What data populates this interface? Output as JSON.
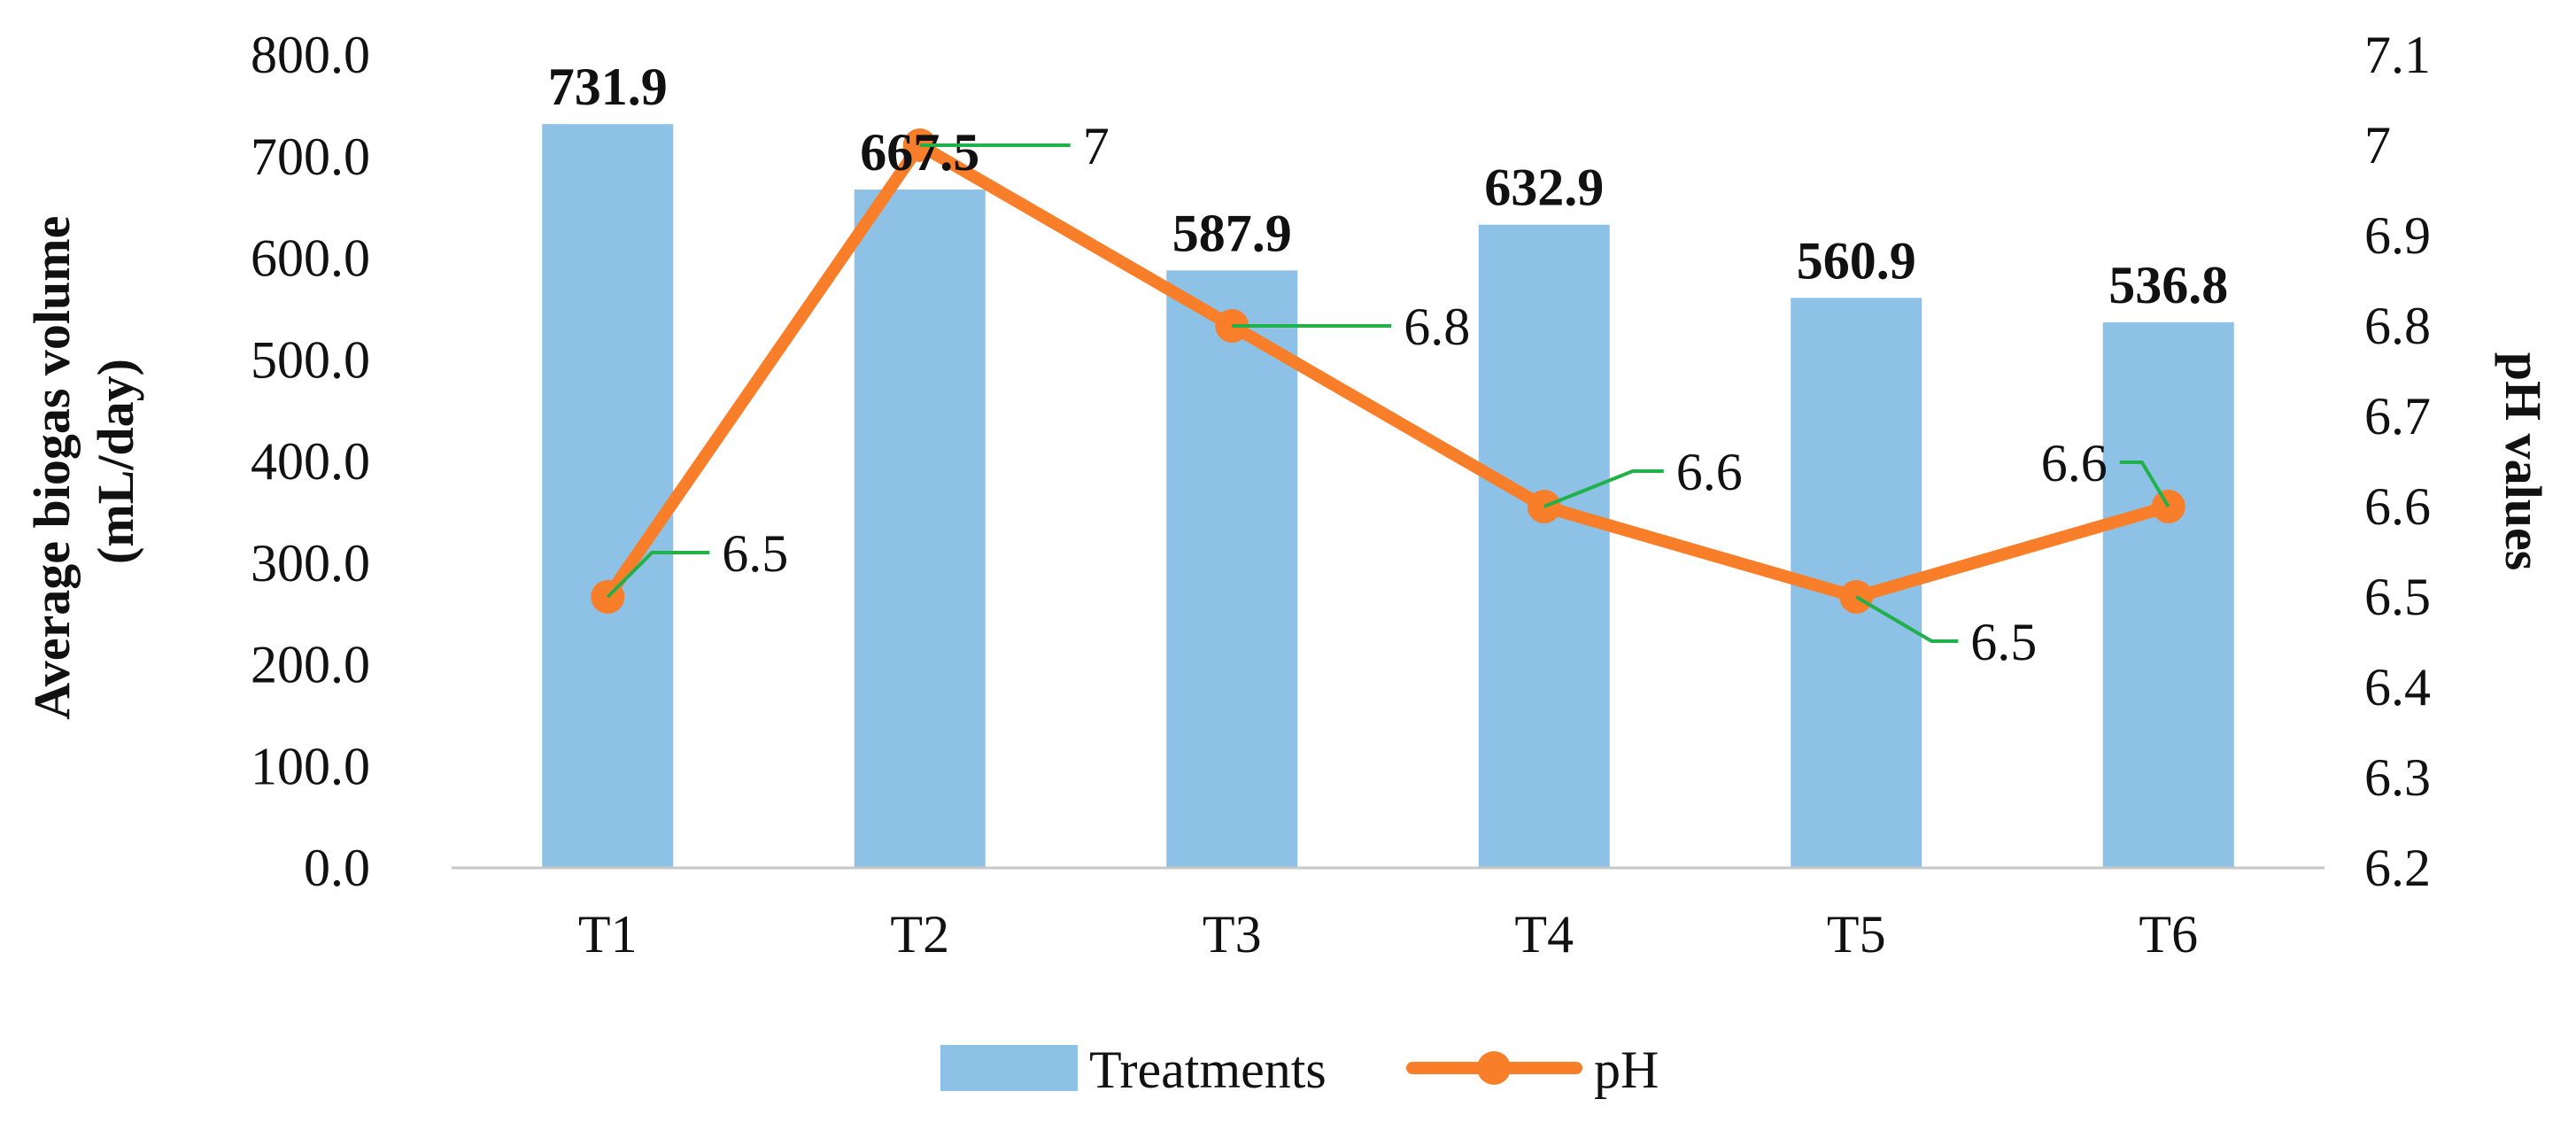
{
  "chart_data": {
    "type": "bar",
    "categories": [
      "T1",
      "T2",
      "T3",
      "T4",
      "T5",
      "T6"
    ],
    "series": [
      {
        "name": "Treatments",
        "type": "bar",
        "axis": "left",
        "values": [
          731.9,
          667.5,
          587.9,
          632.9,
          560.9,
          536.8
        ],
        "labels": [
          "731.9",
          "667.5",
          "587.9",
          "632.9",
          "560.9",
          "536.8"
        ],
        "color": "#8DC1E6"
      },
      {
        "name": "pH",
        "type": "line",
        "axis": "right",
        "values": [
          6.5,
          7.0,
          6.8,
          6.6,
          6.5,
          6.6
        ],
        "labels": [
          "6.5",
          "7",
          "6.8",
          "6.6",
          "6.5",
          "6.6"
        ],
        "color": "#F97E2A",
        "label_leader_color": "#22B04A"
      }
    ],
    "ylabel": "Average biogas volume (mL/day)",
    "ylabel_lines": [
      "Average biogas volume",
      "(mL/day)"
    ],
    "y2label": "pH values",
    "ylim": [
      0,
      800
    ],
    "y2lim": [
      6.2,
      7.1
    ],
    "yticks": [
      "0.0",
      "100.0",
      "200.0",
      "300.0",
      "400.0",
      "500.0",
      "600.0",
      "700.0",
      "800.0"
    ],
    "y2ticks": [
      "6.2",
      "6.3",
      "6.4",
      "6.5",
      "6.6",
      "6.7",
      "6.8",
      "6.9",
      "7",
      "7.1"
    ],
    "legend": [
      "Treatments",
      "pH"
    ],
    "legend_position": "bottom",
    "grid": false
  }
}
